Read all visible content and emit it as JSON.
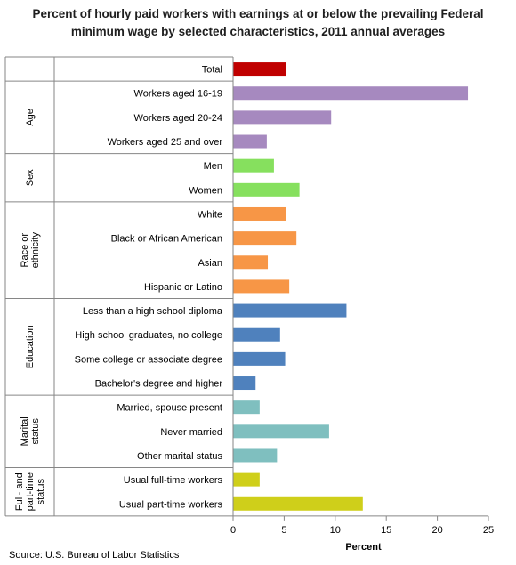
{
  "title_line1": "Percent of hourly paid workers with earnings at or below the prevailing Federal",
  "title_line2": "minimum wage by selected characteristics, 2011 annual averages",
  "source": "Source: U.S. Bureau of Labor Statistics",
  "chart_data": {
    "type": "bar",
    "orientation": "horizontal",
    "xlabel": "Percent",
    "xlim": [
      0,
      25
    ],
    "xticks": [
      0,
      5,
      10,
      15,
      20,
      25
    ],
    "grid": false,
    "legend": "none",
    "groups": [
      {
        "label": "",
        "color": "#c00000",
        "items": [
          {
            "label": "Total",
            "value": 5.2
          }
        ]
      },
      {
        "label": "Age",
        "color": "#a689bf",
        "items": [
          {
            "label": "Workers aged 16-19",
            "value": 23.0
          },
          {
            "label": "Workers aged 20-24",
            "value": 9.6
          },
          {
            "label": "Workers aged 25 and over",
            "value": 3.3
          }
        ]
      },
      {
        "label": "Sex",
        "color": "#86e05e",
        "items": [
          {
            "label": "Men",
            "value": 4.0
          },
          {
            "label": "Women",
            "value": 6.5
          }
        ]
      },
      {
        "label": "Race or ethnicity",
        "lines": [
          "Race or",
          "ethnicity"
        ],
        "color": "#f79646",
        "items": [
          {
            "label": "White",
            "value": 5.2
          },
          {
            "label": "Black or African American",
            "value": 6.2
          },
          {
            "label": "Asian",
            "value": 3.4
          },
          {
            "label": "Hispanic or Latino",
            "value": 5.5
          }
        ]
      },
      {
        "label": "Education",
        "color": "#4f81bd",
        "items": [
          {
            "label": "Less than a high school diploma",
            "value": 11.1
          },
          {
            "label": "High school graduates, no college",
            "value": 4.6
          },
          {
            "label": "Some college or associate  degree",
            "value": 5.1
          },
          {
            "label": "Bachelor's degree and higher",
            "value": 2.2
          }
        ]
      },
      {
        "label": "Marital status",
        "lines": [
          "Marital",
          "status"
        ],
        "color": "#7fbfbf",
        "items": [
          {
            "label": "Married, spouse present",
            "value": 2.6
          },
          {
            "label": "Never married",
            "value": 9.4
          },
          {
            "label": "Other marital status",
            "value": 4.3
          }
        ]
      },
      {
        "label": "Full- and part-time status",
        "lines": [
          "Full- and",
          "part-time",
          "status"
        ],
        "color": "#cfcf1a",
        "items": [
          {
            "label": "Usual full-time workers",
            "value": 2.6
          },
          {
            "label": "Usual part-time  workers",
            "value": 12.7
          }
        ]
      }
    ]
  }
}
